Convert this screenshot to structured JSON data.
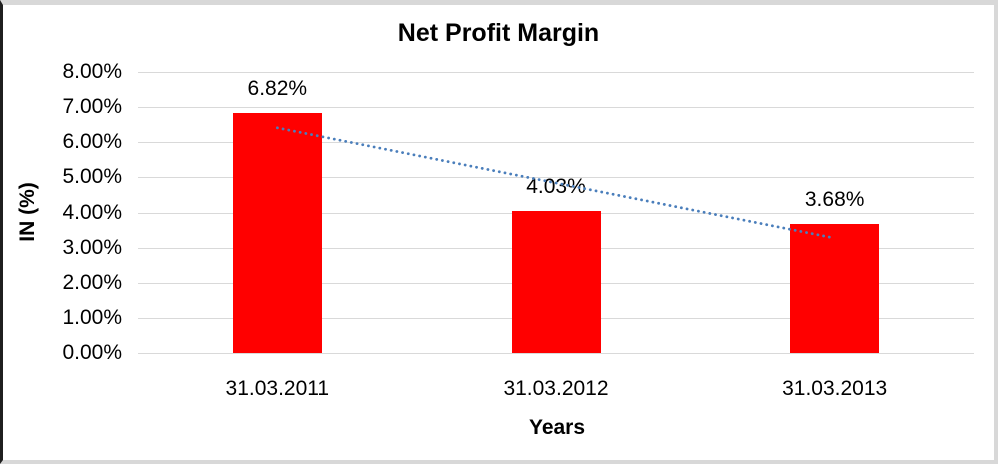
{
  "chart_data": {
    "type": "bar",
    "title": "Net Profit Margin",
    "xlabel": "Years",
    "ylabel": "IN (%)",
    "categories": [
      "31.03.2011",
      "31.03.2012",
      "31.03.2013"
    ],
    "values": [
      6.82,
      4.03,
      3.68
    ],
    "data_labels": [
      "6.82%",
      "4.03%",
      "3.68%"
    ],
    "ylim": [
      0,
      8
    ],
    "ytick_step": 1,
    "yticks": [
      "8.00%",
      "7.00%",
      "6.00%",
      "5.00%",
      "4.00%",
      "3.00%",
      "2.00%",
      "1.00%",
      "0.00%"
    ],
    "grid": "horizontal",
    "legend": "none",
    "bar_color": "#FF0000",
    "trendline": {
      "type": "linear",
      "style": "dotted",
      "color": "#4A7EBB",
      "start_value": 6.41,
      "end_value": 3.27
    }
  },
  "colors": {
    "gridline": "#D9D9D9",
    "text": "#000000",
    "background": "#FFFFFF",
    "frame_light": "#D8D8D8",
    "frame_dark": "#1F1F1F"
  }
}
